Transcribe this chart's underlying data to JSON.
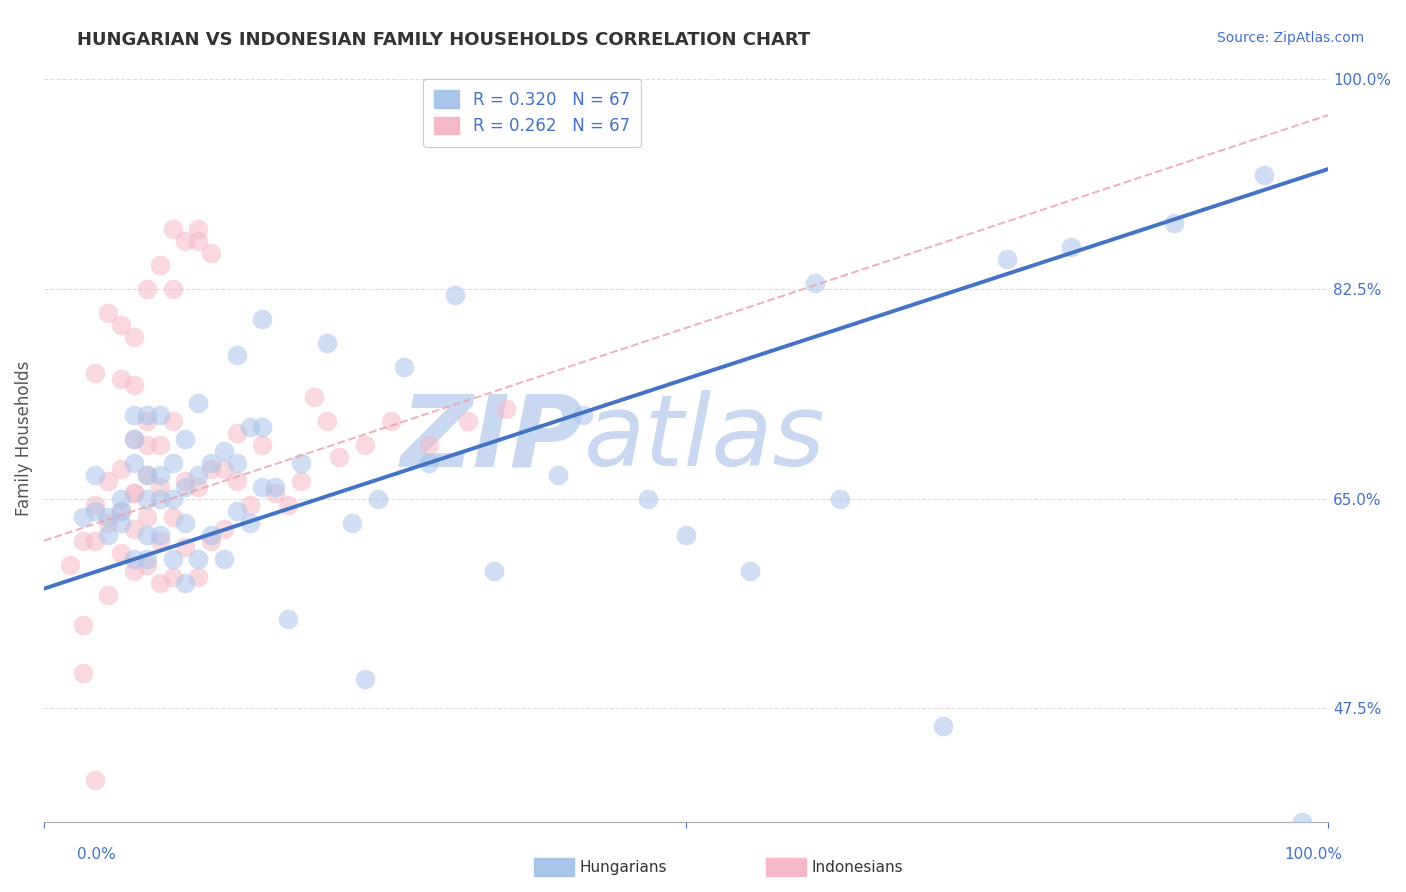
{
  "title": "HUNGARIAN VS INDONESIAN FAMILY HOUSEHOLDS CORRELATION CHART",
  "source": "Source: ZipAtlas.com",
  "ylabel": "Family Households",
  "xmin": 0.0,
  "xmax": 1.0,
  "ymin": 0.38,
  "ymax": 1.02,
  "title_color": "#333333",
  "axis_color": "#4472C4",
  "grid_color": "#DDDDDD",
  "background_color": "#FFFFFF",
  "watermark_zip": "ZIP",
  "watermark_atlas": "atlas",
  "watermark_color": "#C8D8F0",
  "legend_R_blue": "0.320",
  "legend_N_blue": "67",
  "legend_R_pink": "0.262",
  "legend_N_pink": "67",
  "blue_scatter_x": [
    0.03,
    0.04,
    0.04,
    0.05,
    0.05,
    0.06,
    0.06,
    0.06,
    0.07,
    0.07,
    0.07,
    0.07,
    0.08,
    0.08,
    0.08,
    0.08,
    0.08,
    0.09,
    0.09,
    0.09,
    0.09,
    0.1,
    0.1,
    0.1,
    0.11,
    0.11,
    0.11,
    0.11,
    0.12,
    0.12,
    0.12,
    0.13,
    0.13,
    0.14,
    0.14,
    0.15,
    0.15,
    0.15,
    0.16,
    0.16,
    0.17,
    0.17,
    0.17,
    0.18,
    0.19,
    0.2,
    0.22,
    0.24,
    0.25,
    0.26,
    0.28,
    0.3,
    0.32,
    0.35,
    0.4,
    0.42,
    0.47,
    0.5,
    0.55,
    0.6,
    0.62,
    0.7,
    0.75,
    0.8,
    0.88,
    0.95,
    0.98
  ],
  "blue_scatter_y": [
    0.635,
    0.64,
    0.67,
    0.62,
    0.635,
    0.63,
    0.64,
    0.65,
    0.68,
    0.7,
    0.6,
    0.72,
    0.6,
    0.62,
    0.65,
    0.67,
    0.72,
    0.62,
    0.65,
    0.67,
    0.72,
    0.6,
    0.65,
    0.68,
    0.58,
    0.63,
    0.66,
    0.7,
    0.6,
    0.67,
    0.73,
    0.62,
    0.68,
    0.6,
    0.69,
    0.64,
    0.68,
    0.77,
    0.63,
    0.71,
    0.66,
    0.71,
    0.8,
    0.66,
    0.55,
    0.68,
    0.78,
    0.63,
    0.5,
    0.65,
    0.76,
    0.68,
    0.82,
    0.59,
    0.67,
    0.72,
    0.65,
    0.62,
    0.59,
    0.83,
    0.65,
    0.46,
    0.85,
    0.86,
    0.88,
    0.92,
    0.38
  ],
  "pink_scatter_x": [
    0.02,
    0.03,
    0.03,
    0.04,
    0.04,
    0.05,
    0.05,
    0.05,
    0.06,
    0.06,
    0.06,
    0.07,
    0.07,
    0.07,
    0.07,
    0.07,
    0.08,
    0.08,
    0.08,
    0.08,
    0.09,
    0.09,
    0.09,
    0.1,
    0.1,
    0.1,
    0.11,
    0.11,
    0.12,
    0.12,
    0.13,
    0.13,
    0.14,
    0.14,
    0.15,
    0.15,
    0.16,
    0.17,
    0.18,
    0.19,
    0.2,
    0.21,
    0.22,
    0.23,
    0.25,
    0.27,
    0.3,
    0.33,
    0.36,
    0.07,
    0.08,
    0.09,
    0.1,
    0.1,
    0.11,
    0.12,
    0.12,
    0.13,
    0.05,
    0.06,
    0.06,
    0.07,
    0.08,
    0.04,
    0.04,
    0.03,
    0.09
  ],
  "pink_scatter_y": [
    0.595,
    0.545,
    0.615,
    0.615,
    0.645,
    0.57,
    0.63,
    0.665,
    0.605,
    0.64,
    0.675,
    0.59,
    0.625,
    0.655,
    0.7,
    0.655,
    0.595,
    0.635,
    0.67,
    0.715,
    0.615,
    0.66,
    0.695,
    0.585,
    0.635,
    0.715,
    0.61,
    0.665,
    0.585,
    0.66,
    0.615,
    0.675,
    0.625,
    0.675,
    0.665,
    0.705,
    0.645,
    0.695,
    0.655,
    0.645,
    0.665,
    0.735,
    0.715,
    0.685,
    0.695,
    0.715,
    0.695,
    0.715,
    0.725,
    0.785,
    0.825,
    0.845,
    0.875,
    0.825,
    0.865,
    0.875,
    0.865,
    0.855,
    0.805,
    0.795,
    0.75,
    0.745,
    0.695,
    0.755,
    0.415,
    0.505,
    0.58
  ],
  "blue_line_x": [
    0.0,
    1.0
  ],
  "blue_line_y": [
    0.575,
    0.925
  ],
  "pink_line_x": [
    0.0,
    1.0
  ],
  "pink_line_y": [
    0.615,
    0.97
  ],
  "ytick_positions": [
    0.475,
    0.65,
    0.825,
    1.0
  ],
  "ytick_labels": [
    "47.5%",
    "65.0%",
    "82.5%",
    "100.0%"
  ]
}
